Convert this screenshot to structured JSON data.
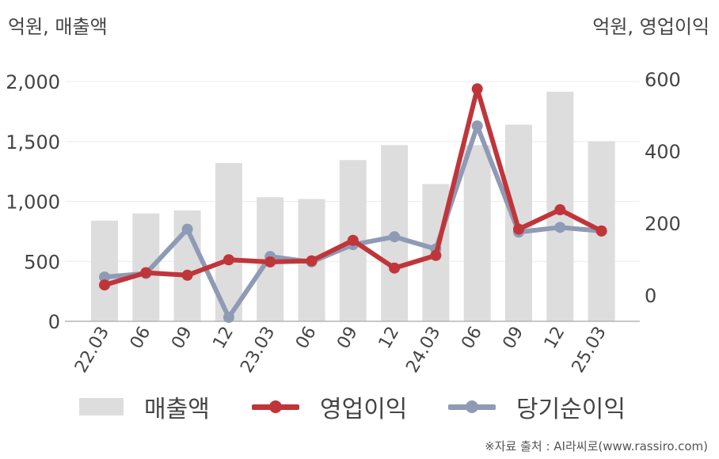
{
  "units": {
    "left": "억원, 매출액",
    "right": "억원, 영업이익"
  },
  "source": "※자료 출처 : AI라씨로(www.rassiro.com)",
  "colors": {
    "revenue": "#dddddd",
    "operating_profit": "#c0353a",
    "net_income": "#8f9bb5"
  },
  "chart_data": {
    "type": "bar+line",
    "categories": [
      "22.03",
      "06",
      "09",
      "12",
      "23.03",
      "06",
      "09",
      "12",
      "24.03",
      "06",
      "09",
      "12",
      "25.03"
    ],
    "series": [
      {
        "name": "매출액",
        "type": "bar",
        "axis": "left",
        "values": [
          840,
          900,
          925,
          1320,
          1035,
          1020,
          1345,
          1470,
          1145,
          1470,
          1640,
          1915,
          1500
        ]
      },
      {
        "name": "영업이익",
        "type": "line",
        "axis": "right",
        "values": [
          28,
          62,
          55,
          98,
          92,
          95,
          152,
          75,
          110,
          573,
          183,
          237,
          178
        ]
      },
      {
        "name": "당기순이익",
        "type": "line",
        "axis": "right",
        "values": [
          50,
          60,
          183,
          -62,
          107,
          92,
          140,
          162,
          128,
          470,
          175,
          188,
          178
        ]
      }
    ],
    "y_left": {
      "ticks": [
        0,
        500,
        1000,
        1500,
        2000
      ],
      "tick_labels": [
        "0",
        "500",
        "1,000",
        "1,500",
        "2,000"
      ],
      "range": [
        0,
        2000
      ]
    },
    "y_right": {
      "ticks": [
        0,
        200,
        400,
        600
      ],
      "tick_labels": [
        "0",
        "200",
        "400",
        "600"
      ],
      "range": [
        -73,
        600
      ]
    },
    "grid": true,
    "legend_position": "bottom"
  }
}
